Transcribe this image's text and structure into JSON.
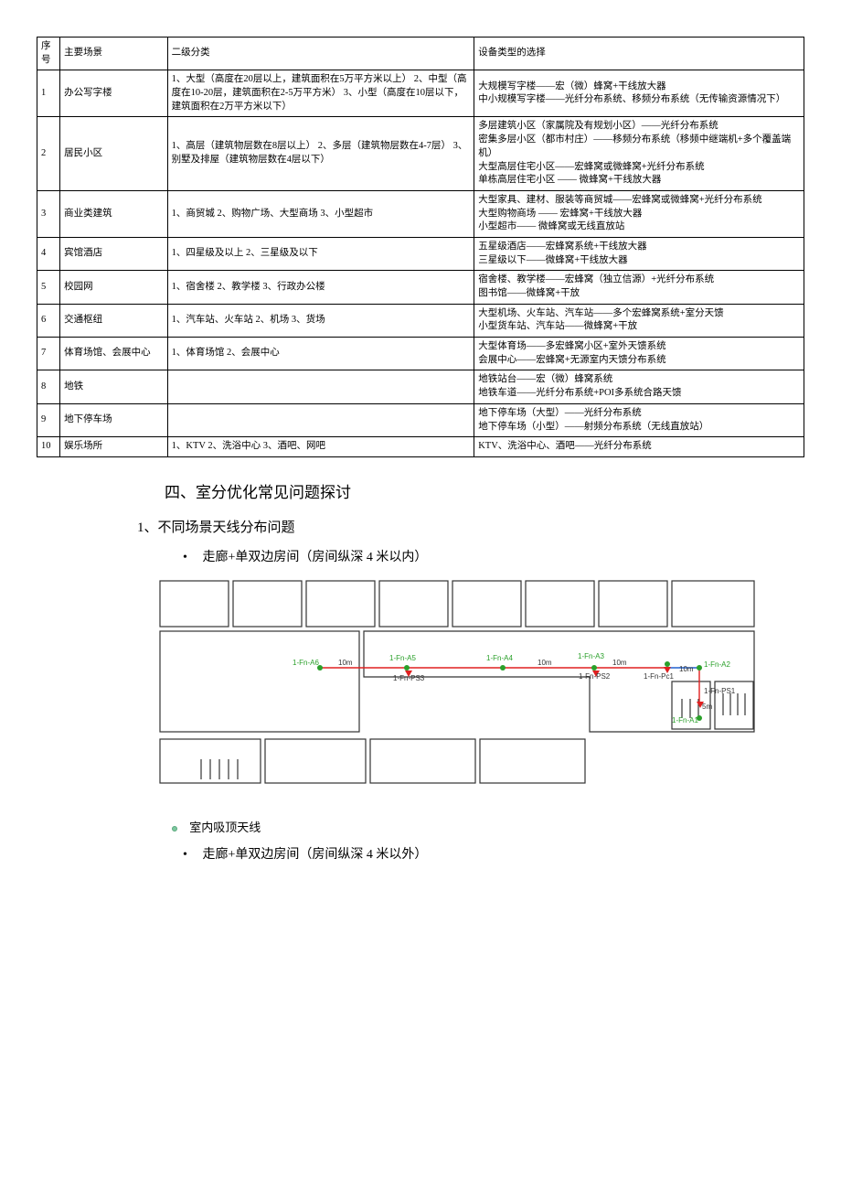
{
  "table": {
    "headers": [
      "序号",
      "主要场景",
      "二级分类",
      "设备类型的选择"
    ],
    "rows": [
      {
        "num": "1",
        "scene": "办公写字楼",
        "class": "1、大型（高度在20层以上，建筑面积在5万平方米以上）  2、中型（高度在10-20层，建筑面积在2-5万平方米）  3、小型（高度在10层以下，建筑面积在2万平方米以下）",
        "select": "大规模写字楼——宏（微）蜂窝+干线放大器\n中小规模写字楼——光纤分布系统、移频分布系统（无传输资源情况下）"
      },
      {
        "num": "2",
        "scene": "居民小区",
        "class": "1、高层（建筑物层数在8层以上）  2、多层（建筑物层数在4-7层）  3、别墅及排屋（建筑物层数在4层以下）",
        "select": "多层建筑小区（家属院及有规划小区）——光纤分布系统\n密集多层小区（都市村庄）——移频分布系统（移频中继端机+多个覆盖端机）\n大型高层住宅小区——宏蜂窝或微蜂窝+光纤分布系统\n单栋高层住宅小区 ——  微蜂窝+干线放大器"
      },
      {
        "num": "3",
        "scene": "商业类建筑",
        "class": "1、商贸城 2、购物广场、大型商场 3、小型超市",
        "select": "大型家具、建材、服装等商贸城——宏蜂窝或微蜂窝+光纤分布系统\n大型购物商场 ——  宏蜂窝+干线放大器\n小型超市——  微蜂窝或无线直放站"
      },
      {
        "num": "4",
        "scene": "宾馆酒店",
        "class": "1、四星级及以上    2、三星级及以下",
        "select": "五星级酒店——宏蜂窝系统+干线放大器\n三星级以下——微蜂窝+干线放大器"
      },
      {
        "num": "5",
        "scene": "校园网",
        "class": "1、宿舍楼    2、教学楼    3、行政办公楼",
        "select": "宿舍楼、教学楼——宏蜂窝（独立信源）+光纤分布系统\n图书馆——微蜂窝+干放"
      },
      {
        "num": "6",
        "scene": "交通枢纽",
        "class": "1、汽车站、火车站    2、机场    3、货场",
        "select": "大型机场、火车站、汽车站——多个宏蜂窝系统+室分天馈\n小型货车站、汽车站——微蜂窝+干放"
      },
      {
        "num": "7",
        "scene": "体育场馆、会展中心",
        "class": "1、体育场馆    2、会展中心",
        "select": "大型体育场——多宏蜂窝小区+室外天馈系统\n会展中心——宏蜂窝+无源室内天馈分布系统"
      },
      {
        "num": "8",
        "scene": "地铁",
        "class": "",
        "select": "地铁站台——宏（微）蜂窝系统\n地铁车道——光纤分布系统+POI多系统合路天馈"
      },
      {
        "num": "9",
        "scene": "地下停车场",
        "class": "",
        "select": "地下停车场（大型）——光纤分布系统\n地下停车场（小型）——射频分布系统（无线直放站）"
      },
      {
        "num": "10",
        "scene": "娱乐场所",
        "class": "1、KTV    2、洗浴中心    3、酒吧、网吧",
        "select": "KTV、洗浴中心、酒吧——光纤分布系统"
      }
    ]
  },
  "section4": {
    "title": "四、室分优化常见问题探讨",
    "sub1": "1、不同场景天线分布问题",
    "bullet1": "走廊+单双边房间（房间纵深 4 米以内）",
    "legend": "室内吸顶天线",
    "bullet2": "走廊+单双边房间（房间纵深 4 米以外）"
  },
  "diagram": {
    "labels": {
      "a6": "1-Fn-A6",
      "a5": "1-Fn-A5",
      "a4": "1-Fn-A4",
      "a3": "1-Fn-A3",
      "a2": "1-Fn-A2",
      "a1": "1-Fn-A1",
      "ps3": "1-Fn-PS3",
      "ps2": "1-Fn-PS2",
      "pc1": "1-Fn-Pc1",
      "ps1": "1-Fn-PS1",
      "d10m": "10m",
      "d5m": "5m"
    },
    "colors": {
      "outline": "#333333",
      "green": "#2aa02a",
      "red": "#e02020",
      "blue": "#2060d0"
    }
  }
}
